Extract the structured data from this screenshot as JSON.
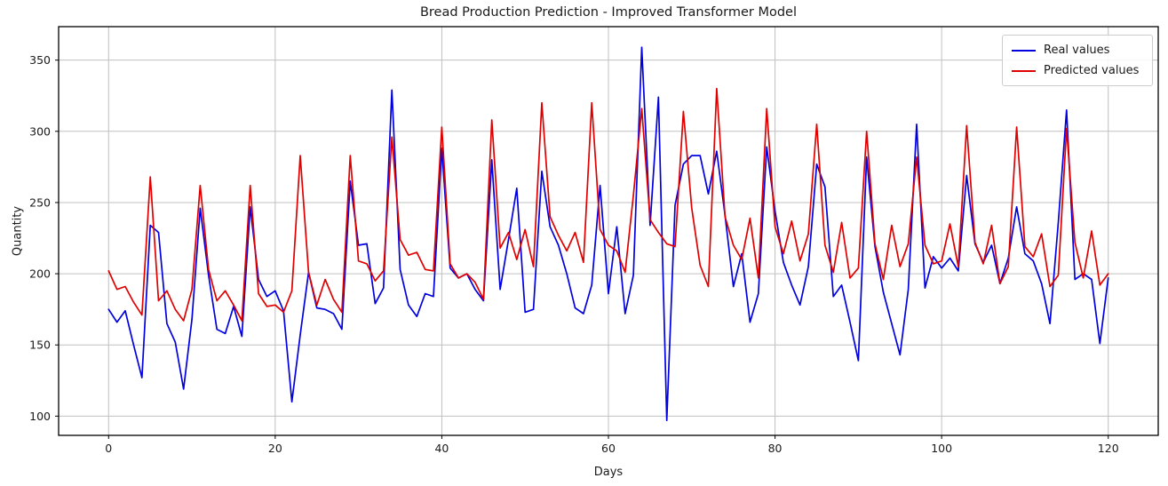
{
  "title": "Bread Production Prediction - Improved Transformer Model",
  "chart_data": {
    "type": "line",
    "title": "Bread Production Prediction - Improved Transformer Model",
    "xlabel": "Days",
    "ylabel": "Quantity",
    "x_ticks": [
      0,
      20,
      40,
      60,
      80,
      100,
      120
    ],
    "y_ticks": [
      100,
      150,
      200,
      250,
      300,
      350
    ],
    "xlim": [
      -6,
      126
    ],
    "ylim": [
      86.5,
      373.5
    ],
    "grid": true,
    "grid_color": "#c0c0c0",
    "frame_color": "#000000",
    "text_color": "#1a1a1a",
    "legend_position": "upper right",
    "x": [
      0,
      1,
      2,
      3,
      4,
      5,
      6,
      7,
      8,
      9,
      10,
      11,
      12,
      13,
      14,
      15,
      16,
      17,
      18,
      19,
      20,
      21,
      22,
      23,
      24,
      25,
      26,
      27,
      28,
      29,
      30,
      31,
      32,
      33,
      34,
      35,
      36,
      37,
      38,
      39,
      40,
      41,
      42,
      43,
      44,
      45,
      46,
      47,
      48,
      49,
      50,
      51,
      52,
      53,
      54,
      55,
      56,
      57,
      58,
      59,
      60,
      61,
      62,
      63,
      64,
      65,
      66,
      67,
      68,
      69,
      70,
      71,
      72,
      73,
      74,
      75,
      76,
      77,
      78,
      79,
      80,
      81,
      82,
      83,
      84,
      85,
      86,
      87,
      88,
      89,
      90,
      91,
      92,
      93,
      94,
      95,
      96,
      97,
      98,
      99,
      100,
      101,
      102,
      103,
      104,
      105,
      106,
      107,
      108,
      109,
      110,
      111,
      112,
      113,
      114,
      115,
      116,
      117,
      118,
      119,
      120
    ],
    "series": [
      {
        "name": "Real values",
        "color": "#0000e0",
        "values": [
          175,
          166,
          174,
          150,
          127,
          234,
          229,
          165,
          152,
          119,
          168,
          246,
          199,
          161,
          158,
          177,
          156,
          247,
          196,
          184,
          188,
          174,
          110,
          157,
          201,
          176,
          175,
          172,
          161,
          265,
          220,
          221,
          179,
          190,
          329,
          203,
          178,
          170,
          186,
          184,
          288,
          204,
          197,
          200,
          189,
          181,
          280,
          189,
          224,
          260,
          173,
          175,
          272,
          233,
          220,
          200,
          176,
          172,
          192,
          262,
          186,
          233,
          172,
          199,
          359,
          234,
          324,
          97,
          248,
          277,
          283,
          283,
          256,
          286,
          241,
          191,
          214,
          166,
          186,
          289,
          244,
          208,
          192,
          178,
          205,
          277,
          261,
          184,
          192,
          166,
          139,
          282,
          219,
          187,
          165,
          143,
          189,
          305,
          190,
          212,
          204,
          211,
          202,
          269,
          221,
          208,
          220,
          193,
          211,
          247,
          214,
          209,
          193,
          165,
          236,
          315,
          196,
          200,
          196,
          151,
          197
        ]
      },
      {
        "name": "Predicted values",
        "color": "#e00000",
        "values": [
          202,
          189,
          191,
          180,
          171,
          268,
          181,
          188,
          175,
          167,
          189,
          262,
          203,
          181,
          188,
          178,
          167,
          262,
          186,
          177,
          178,
          173,
          188,
          283,
          201,
          178,
          196,
          182,
          173,
          283,
          209,
          207,
          195,
          202,
          296,
          224,
          213,
          215,
          203,
          202,
          303,
          207,
          197,
          200,
          194,
          182,
          308,
          218,
          229,
          210,
          231,
          205,
          320,
          240,
          227,
          216,
          229,
          208,
          320,
          231,
          220,
          216,
          201,
          255,
          316,
          238,
          229,
          221,
          219,
          314,
          246,
          206,
          191,
          330,
          240,
          220,
          210,
          239,
          197,
          316,
          233,
          214,
          237,
          209,
          228,
          305,
          220,
          201,
          236,
          197,
          204,
          300,
          221,
          196,
          234,
          205,
          221,
          282,
          220,
          207,
          209,
          235,
          205,
          304,
          222,
          207,
          234,
          193,
          205,
          303,
          219,
          212,
          228,
          191,
          199,
          302,
          222,
          197,
          230,
          192,
          200
        ]
      }
    ]
  },
  "legend": {
    "entries": [
      {
        "label": "Real values"
      },
      {
        "label": "Predicted values"
      }
    ]
  }
}
